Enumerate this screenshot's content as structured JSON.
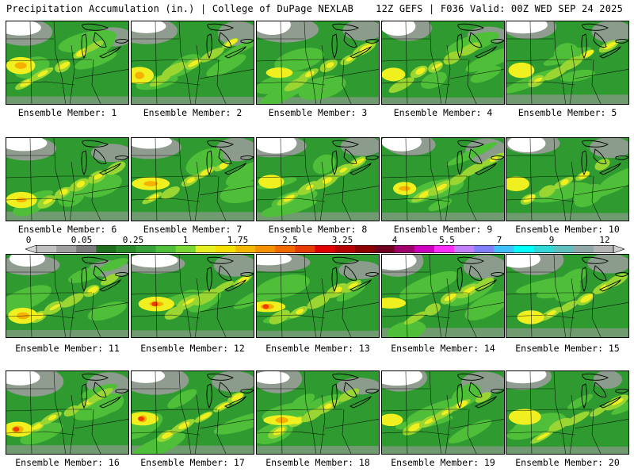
{
  "header": {
    "title_left": "Precipitation Accumulation (in.) | College of DuPage NEXLAB",
    "title_right": "12Z GEFS | F036 Valid: 00Z WED SEP 24 2025"
  },
  "colorbar": {
    "tick_labels": [
      "0",
      "0.05",
      "0.25",
      "1",
      "1.75",
      "2.5",
      "3.25",
      "4",
      "5.5",
      "7",
      "9",
      "12"
    ],
    "colors": [
      "#d9d9d9",
      "#c0c0c0",
      "#a0a0a0",
      "#7a7a7a",
      "#1e6e1e",
      "#2a8a2a",
      "#38a238",
      "#4fbf3a",
      "#7ad632",
      "#e6f020",
      "#f5e000",
      "#f5b800",
      "#f59000",
      "#f06a00",
      "#e63c00",
      "#e00000",
      "#b40000",
      "#8c0000",
      "#700020",
      "#a0006e",
      "#d000c0",
      "#ff30ff",
      "#c080ff",
      "#8080ff",
      "#40c0ff",
      "#00ffff",
      "#30d8d8",
      "#60c0c0",
      "#90a8a8",
      "#b4b4b4",
      "#d0d0d0"
    ]
  },
  "panels": [
    {
      "label": "Ensemble Member: 1"
    },
    {
      "label": "Ensemble Member: 2"
    },
    {
      "label": "Ensemble Member: 3"
    },
    {
      "label": "Ensemble Member: 4"
    },
    {
      "label": "Ensemble Member: 5"
    },
    {
      "label": "Ensemble Member: 6"
    },
    {
      "label": "Ensemble Member: 7"
    },
    {
      "label": "Ensemble Member: 8"
    },
    {
      "label": "Ensemble Member: 9"
    },
    {
      "label": "Ensemble Member: 10"
    },
    {
      "label": "Ensemble Member: 11"
    },
    {
      "label": "Ensemble Member: 12"
    },
    {
      "label": "Ensemble Member: 13"
    },
    {
      "label": "Ensemble Member: 14"
    },
    {
      "label": "Ensemble Member: 15"
    },
    {
      "label": "Ensemble Member: 16"
    },
    {
      "label": "Ensemble Member: 17"
    },
    {
      "label": "Ensemble Member: 18"
    },
    {
      "label": "Ensemble Member: 19"
    },
    {
      "label": "Ensemble Member: 20"
    }
  ],
  "palette": {
    "background_green": "#2f9a2f",
    "light_green": "#4fbf3a",
    "lime": "#9ad632",
    "yellow": "#f0f020",
    "orange": "#f5b000",
    "red": "#f03c00",
    "gray": "#9c9c9c",
    "white": "#ffffff",
    "border": "#000000"
  }
}
